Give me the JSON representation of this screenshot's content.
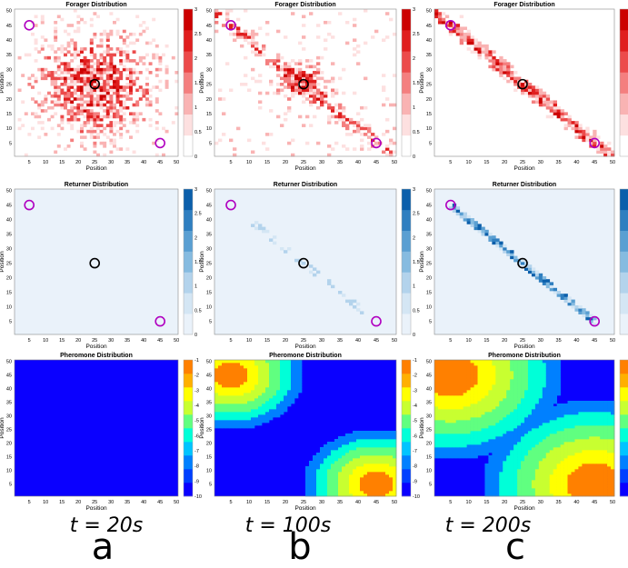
{
  "chart_data": {
    "type": "heatmap",
    "grid_size": 50,
    "axis_label": "Position",
    "x_ticks": [
      5,
      10,
      15,
      20,
      25,
      30,
      35,
      40,
      45,
      50
    ],
    "y_ticks": [
      5,
      10,
      15,
      20,
      25,
      30,
      35,
      40,
      45,
      50
    ],
    "nest": {
      "x": 25,
      "y": 25,
      "color": "#000000"
    },
    "food_sources": [
      {
        "x": 5,
        "y": 45
      },
      {
        "x": 45,
        "y": 5
      }
    ],
    "food_color": "#b000c0",
    "columns": [
      {
        "time_label": "t = 20s",
        "letter": "a"
      },
      {
        "time_label": "t = 100s",
        "letter": "b"
      },
      {
        "time_label": "t = 200s",
        "letter": "c"
      }
    ],
    "rows": [
      {
        "key": "forager",
        "title": "Forager Distribution",
        "colorbar_ticks": [
          "3",
          "2.5",
          "2",
          "1.5",
          "1",
          "0.5",
          "0"
        ],
        "colorbar_range": [
          0,
          3
        ],
        "colors": [
          "#ffffff",
          "#fde0e0",
          "#f9b3b3",
          "#f47f7f",
          "#ec4b4b",
          "#e01e1e",
          "#cc0000"
        ]
      },
      {
        "key": "returner",
        "title": "Returner Distribution",
        "colorbar_ticks": [
          "3",
          "2.5",
          "2",
          "1.5",
          "1",
          "0.5",
          "0"
        ],
        "colorbar_range": [
          0,
          3
        ],
        "colors": [
          "#eaf2fa",
          "#d4e6f4",
          "#b3d3ec",
          "#86bbe0",
          "#5a9fd2",
          "#2f7fc0",
          "#0b5fab"
        ]
      },
      {
        "key": "pheromone",
        "title": "Pheromone Distribution",
        "colorbar_ticks": [
          "-1",
          "-2",
          "-3",
          "-4",
          "-5",
          "-6",
          "-7",
          "-8",
          "-9",
          "-10"
        ],
        "colorbar_range": [
          -10,
          -1
        ],
        "colors": [
          "#0a00ff",
          "#0040ff",
          "#0080ff",
          "#00c4ff",
          "#00ffd8",
          "#60ff80",
          "#c8ff30",
          "#ffff00",
          "#ffb000",
          "#ff8000"
        ]
      }
    ]
  }
}
